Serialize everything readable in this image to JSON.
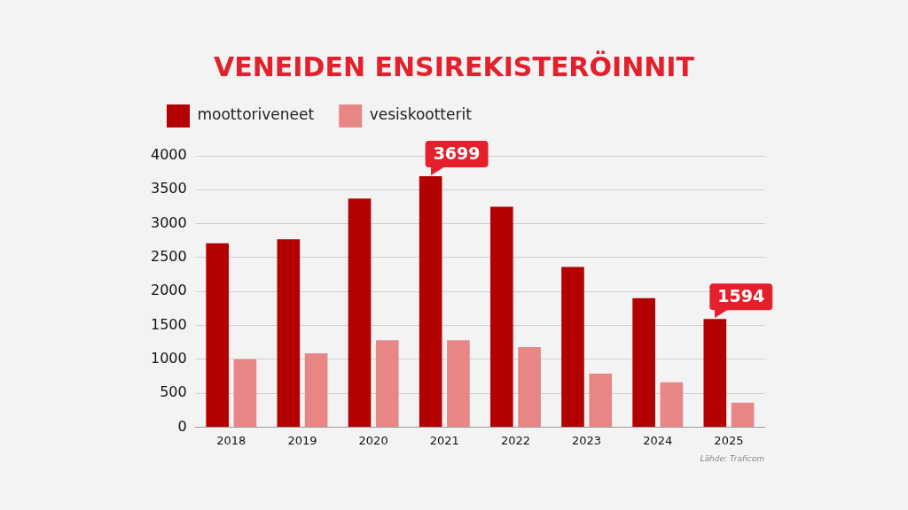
{
  "chart_data": {
    "type": "bar",
    "title": "VENEIDEN ENSIREKISTERÖINNIT",
    "categories": [
      "2018",
      "2019",
      "2020",
      "2021",
      "2022",
      "2023",
      "2024",
      "2025"
    ],
    "series": [
      {
        "name": "moottoriveneet",
        "color": "#b30000",
        "values": [
          2710,
          2770,
          3370,
          3699,
          3250,
          2360,
          1900,
          1594
        ],
        "value_labels": [
          null,
          null,
          null,
          "3699",
          null,
          null,
          null,
          "1594"
        ]
      },
      {
        "name": "vesiskootterit",
        "color": "#e88686",
        "values": [
          1000,
          1090,
          1280,
          1280,
          1180,
          790,
          660,
          360
        ]
      }
    ],
    "ylim": [
      0,
      4000
    ],
    "yticks": [
      0,
      500,
      1000,
      1500,
      2000,
      2500,
      3000,
      3500,
      4000
    ],
    "grid": "y",
    "legend": "top left",
    "annotations": [
      "Lähde: Traficom"
    ]
  }
}
